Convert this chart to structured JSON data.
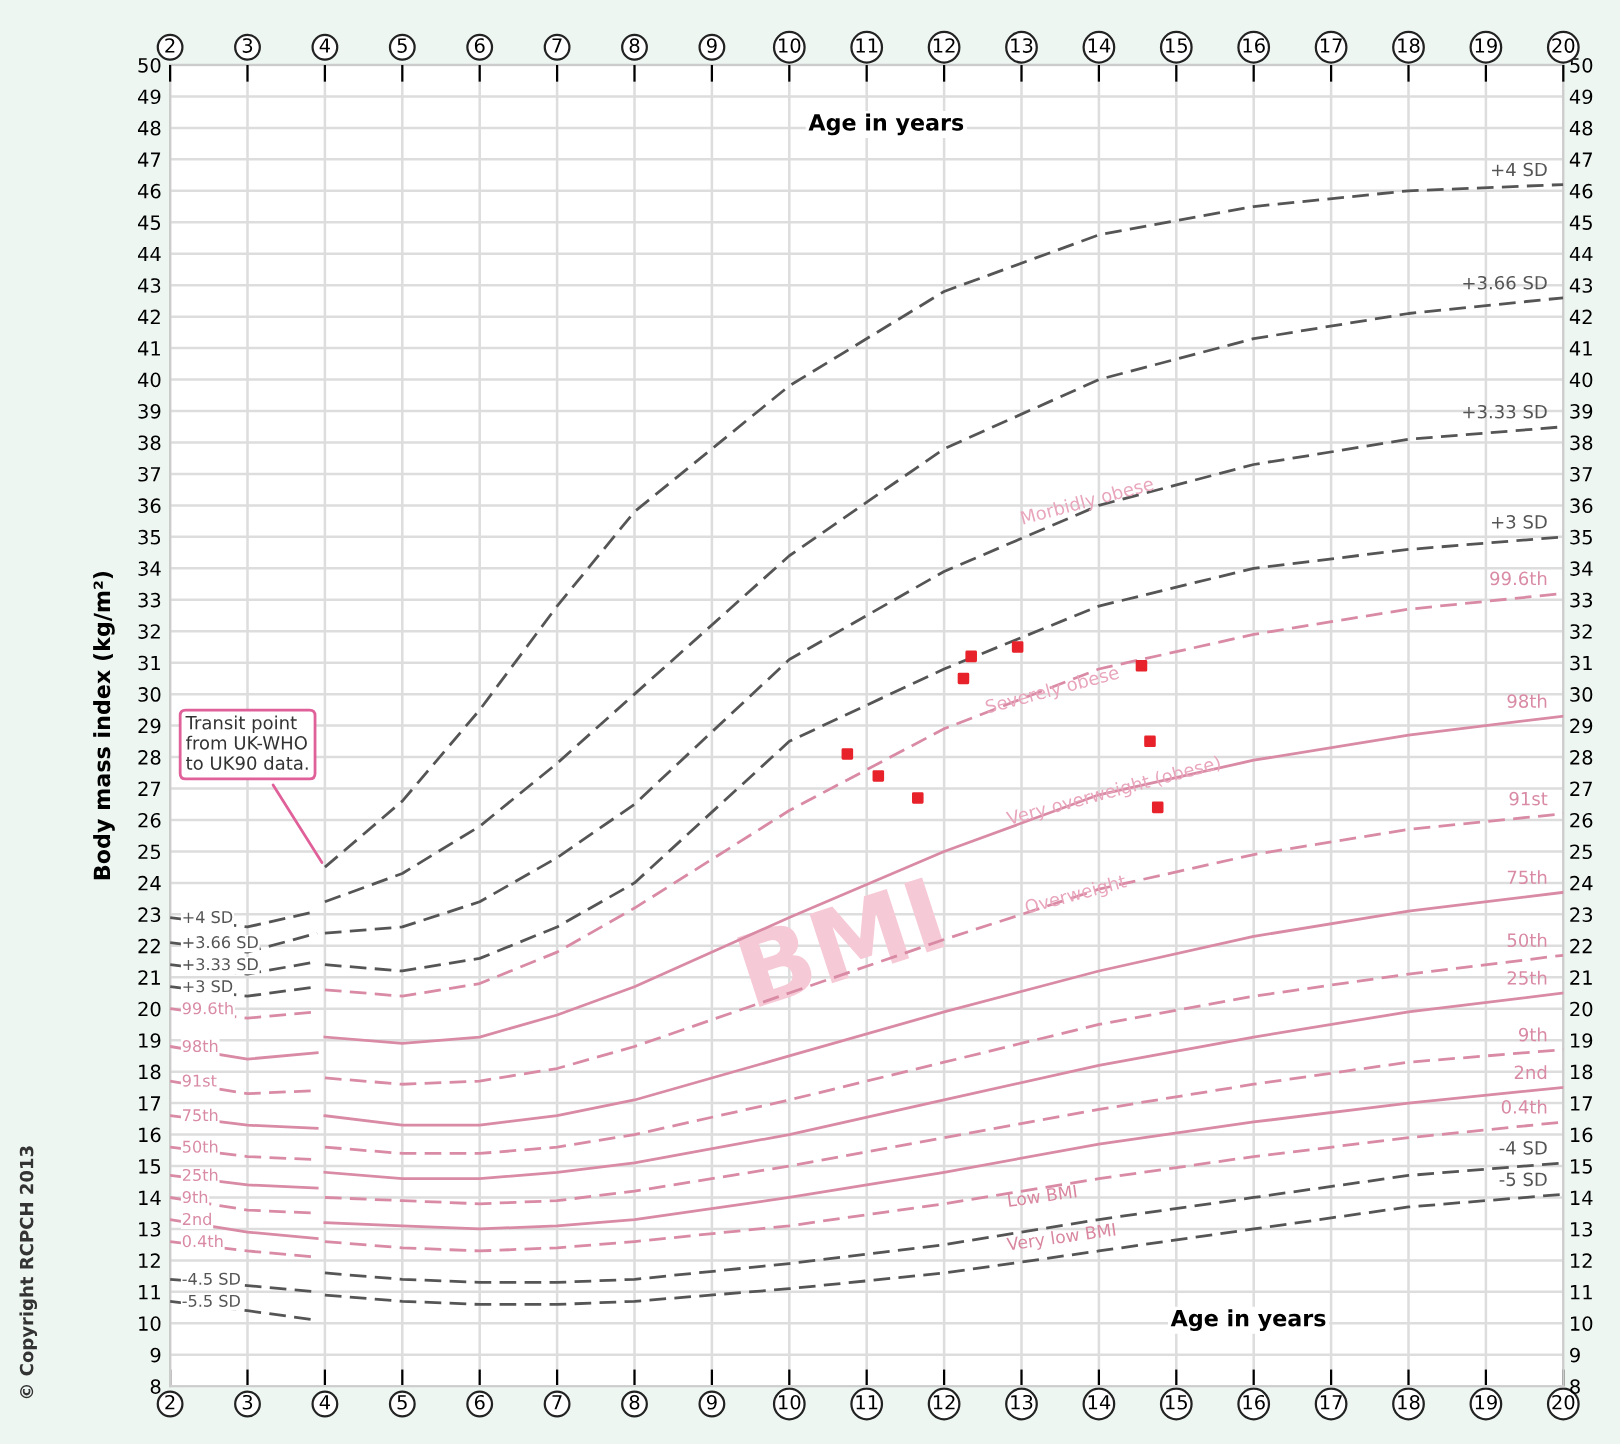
{
  "chart_data": {
    "type": "line",
    "xlabel": "Age in years",
    "x2label": "Age in years",
    "ylabel": "Body mass index (kg/m²)",
    "xlim": [
      2,
      20
    ],
    "xticks": [
      2,
      3,
      4,
      5,
      6,
      7,
      8,
      9,
      10,
      11,
      12,
      13,
      14,
      15,
      16,
      17,
      18,
      19,
      20
    ],
    "x2lim": [
      2,
      20
    ],
    "x2ticks": [
      2,
      3,
      4,
      5,
      6,
      7,
      8,
      9,
      10,
      11,
      12,
      13,
      14,
      15,
      16,
      17,
      18,
      19,
      20
    ],
    "ylim": [
      8,
      50
    ],
    "yticks": [
      8,
      9,
      10,
      11,
      12,
      13,
      14,
      15,
      16,
      17,
      18,
      19,
      20,
      21,
      22,
      23,
      24,
      25,
      26,
      27,
      28,
      29,
      30,
      31,
      32,
      33,
      34,
      35,
      36,
      37,
      38,
      39,
      40,
      41,
      42,
      43,
      44,
      45,
      46,
      47,
      48,
      49,
      50
    ],
    "y2lim": [
      8,
      50
    ],
    "y2ticks": [
      8,
      9,
      10,
      11,
      12,
      13,
      14,
      15,
      16,
      17,
      18,
      19,
      20,
      21,
      22,
      23,
      24,
      25,
      26,
      27,
      28,
      29,
      30,
      31,
      32,
      33,
      34,
      35,
      36,
      37,
      38,
      39,
      40,
      41,
      42,
      43,
      44,
      45,
      46,
      47,
      48,
      49,
      50
    ],
    "grid": true,
    "legend": false,
    "series": [
      {
        "name": "+4 SD",
        "color": "#555555",
        "line_style": "dashed",
        "x": [
          2,
          3,
          3.9
        ],
        "values": [
          22.9,
          22.6,
          23.1
        ]
      },
      {
        "name": "+3.66 SD",
        "color": "#555555",
        "line_style": "dashed",
        "x": [
          2,
          3,
          3.9
        ],
        "values": [
          22.1,
          21.8,
          22.4
        ]
      },
      {
        "name": "+3.33 SD",
        "color": "#555555",
        "line_style": "dashed",
        "x": [
          2,
          3,
          3.9
        ],
        "values": [
          21.4,
          21.1,
          21.5
        ]
      },
      {
        "name": "+3 SD",
        "color": "#555555",
        "line_style": "dashed",
        "x": [
          2,
          3,
          3.9
        ],
        "values": [
          20.7,
          20.4,
          20.7
        ]
      },
      {
        "name": "99.6th",
        "color": "#d98aa4",
        "line_style": "dashed",
        "x": [
          2,
          3,
          3.9
        ],
        "values": [
          20.0,
          19.7,
          19.9
        ]
      },
      {
        "name": "98th",
        "color": "#d98aa4",
        "line_style": "solid",
        "x": [
          2,
          3,
          3.9
        ],
        "values": [
          18.8,
          18.4,
          18.6
        ]
      },
      {
        "name": "91st",
        "color": "#d98aa4",
        "line_style": "dashed",
        "x": [
          2,
          3,
          3.9
        ],
        "values": [
          17.7,
          17.3,
          17.4
        ]
      },
      {
        "name": "75th",
        "color": "#d98aa4",
        "line_style": "solid",
        "x": [
          2,
          3,
          3.9
        ],
        "values": [
          16.6,
          16.3,
          16.2
        ]
      },
      {
        "name": "50th",
        "color": "#d98aa4",
        "line_style": "dashed",
        "x": [
          2,
          3,
          3.9
        ],
        "values": [
          15.6,
          15.3,
          15.2
        ]
      },
      {
        "name": "25th",
        "color": "#d98aa4",
        "line_style": "solid",
        "x": [
          2,
          3,
          3.9
        ],
        "values": [
          14.7,
          14.4,
          14.3
        ]
      },
      {
        "name": "9th",
        "color": "#d98aa4",
        "line_style": "dashed",
        "x": [
          2,
          3,
          3.9
        ],
        "values": [
          14.0,
          13.6,
          13.5
        ]
      },
      {
        "name": "2nd",
        "color": "#d98aa4",
        "line_style": "solid",
        "x": [
          2,
          3,
          3.9
        ],
        "values": [
          13.3,
          12.9,
          12.7
        ]
      },
      {
        "name": "0.4th",
        "color": "#d98aa4",
        "line_style": "dashed",
        "x": [
          2,
          3,
          3.9
        ],
        "values": [
          12.6,
          12.3,
          12.1
        ]
      },
      {
        "name": "-4.5 SD",
        "color": "#555555",
        "line_style": "dashed",
        "x": [
          2,
          3,
          3.9
        ],
        "values": [
          11.4,
          11.2,
          11.0
        ]
      },
      {
        "name": "-5.5 SD",
        "color": "#555555",
        "line_style": "dashed",
        "x": [
          2,
          3,
          3.9
        ],
        "values": [
          10.7,
          10.4,
          10.1
        ]
      },
      {
        "name": "+4 SD",
        "color": "#555555",
        "line_style": "dashed",
        "x": [
          4,
          5,
          6,
          7,
          8,
          10,
          12,
          14,
          16,
          18,
          20
        ],
        "values": [
          24.5,
          26.6,
          29.5,
          32.8,
          35.8,
          39.8,
          42.8,
          44.6,
          45.5,
          46.0,
          46.2
        ]
      },
      {
        "name": "+3.66 SD",
        "color": "#555555",
        "line_style": "dashed",
        "x": [
          4,
          5,
          6,
          7,
          8,
          10,
          12,
          14,
          16,
          18,
          20
        ],
        "values": [
          23.4,
          24.3,
          25.8,
          27.8,
          30.0,
          34.4,
          37.8,
          40.0,
          41.3,
          42.1,
          42.6
        ]
      },
      {
        "name": "+3.33 SD",
        "color": "#555555",
        "line_style": "dashed",
        "x": [
          4,
          5,
          6,
          7,
          8,
          10,
          12,
          14,
          16,
          18,
          20
        ],
        "values": [
          22.4,
          22.6,
          23.4,
          24.8,
          26.5,
          31.1,
          33.9,
          36.0,
          37.3,
          38.1,
          38.5
        ]
      },
      {
        "name": "+3 SD",
        "color": "#555555",
        "line_style": "dashed",
        "x": [
          4,
          5,
          6,
          7,
          8,
          10,
          12,
          14,
          16,
          18,
          20
        ],
        "values": [
          21.4,
          21.2,
          21.6,
          22.6,
          24.0,
          28.5,
          30.8,
          32.8,
          34.0,
          34.6,
          35.0
        ]
      },
      {
        "name": "99.6th",
        "color": "#d98aa4",
        "line_style": "dashed",
        "x": [
          4,
          5,
          6,
          7,
          8,
          10,
          12,
          14,
          16,
          18,
          20
        ],
        "values": [
          20.6,
          20.4,
          20.8,
          21.8,
          23.2,
          26.3,
          28.9,
          30.8,
          31.9,
          32.7,
          33.2
        ]
      },
      {
        "name": "98th",
        "color": "#d98aa4",
        "line_style": "solid",
        "x": [
          4,
          5,
          6,
          7,
          8,
          10,
          12,
          14,
          16,
          18,
          20
        ],
        "values": [
          19.1,
          18.9,
          19.1,
          19.8,
          20.7,
          22.9,
          25.0,
          26.8,
          27.9,
          28.7,
          29.3
        ]
      },
      {
        "name": "91st",
        "color": "#d98aa4",
        "line_style": "dashed",
        "x": [
          4,
          5,
          6,
          7,
          8,
          10,
          12,
          14,
          16,
          18,
          20
        ],
        "values": [
          17.8,
          17.6,
          17.7,
          18.1,
          18.8,
          20.5,
          22.2,
          23.8,
          24.9,
          25.7,
          26.2
        ]
      },
      {
        "name": "75th",
        "color": "#d98aa4",
        "line_style": "solid",
        "x": [
          4,
          5,
          6,
          7,
          8,
          10,
          12,
          14,
          16,
          18,
          20
        ],
        "values": [
          16.6,
          16.3,
          16.3,
          16.6,
          17.1,
          18.5,
          19.9,
          21.2,
          22.3,
          23.1,
          23.7
        ]
      },
      {
        "name": "50th",
        "color": "#d98aa4",
        "line_style": "dashed",
        "x": [
          4,
          5,
          6,
          7,
          8,
          10,
          12,
          14,
          16,
          18,
          20
        ],
        "values": [
          15.6,
          15.4,
          15.4,
          15.6,
          16.0,
          17.1,
          18.3,
          19.5,
          20.4,
          21.1,
          21.7
        ]
      },
      {
        "name": "25th",
        "color": "#d98aa4",
        "line_style": "solid",
        "x": [
          4,
          5,
          6,
          7,
          8,
          10,
          12,
          14,
          16,
          18,
          20
        ],
        "values": [
          14.8,
          14.6,
          14.6,
          14.8,
          15.1,
          16.0,
          17.1,
          18.2,
          19.1,
          19.9,
          20.5
        ]
      },
      {
        "name": "9th",
        "color": "#d98aa4",
        "line_style": "dashed",
        "x": [
          4,
          5,
          6,
          7,
          8,
          10,
          12,
          14,
          16,
          18,
          20
        ],
        "values": [
          14.0,
          13.9,
          13.8,
          13.9,
          14.2,
          15.0,
          15.9,
          16.8,
          17.6,
          18.3,
          18.7
        ]
      },
      {
        "name": "2nd",
        "color": "#d98aa4",
        "line_style": "solid",
        "x": [
          4,
          5,
          6,
          7,
          8,
          10,
          12,
          14,
          16,
          18,
          20
        ],
        "values": [
          13.2,
          13.1,
          13.0,
          13.1,
          13.3,
          14.0,
          14.8,
          15.7,
          16.4,
          17.0,
          17.5
        ]
      },
      {
        "name": "0.4th",
        "color": "#d98aa4",
        "line_style": "dashed",
        "x": [
          4,
          5,
          6,
          7,
          8,
          10,
          12,
          14,
          16,
          18,
          20
        ],
        "values": [
          12.6,
          12.4,
          12.3,
          12.4,
          12.6,
          13.1,
          13.8,
          14.6,
          15.3,
          15.9,
          16.4
        ]
      },
      {
        "name": "-4 SD",
        "color": "#555555",
        "line_style": "dashed",
        "x": [
          4,
          5,
          6,
          7,
          8,
          10,
          12,
          14,
          16,
          18,
          20
        ],
        "values": [
          11.6,
          11.4,
          11.3,
          11.3,
          11.4,
          11.9,
          12.5,
          13.3,
          14.0,
          14.7,
          15.1
        ]
      },
      {
        "name": "-5 SD",
        "color": "#555555",
        "line_style": "dashed",
        "x": [
          4,
          5,
          6,
          7,
          8,
          10,
          12,
          14,
          16,
          18,
          20
        ],
        "values": [
          10.9,
          10.7,
          10.6,
          10.6,
          10.7,
          11.1,
          11.6,
          12.3,
          13.0,
          13.7,
          14.1
        ]
      },
      {
        "type": "scatter",
        "color": "#e8222a",
        "marker": "square",
        "x": [
          10.75,
          11.15,
          11.66,
          12.25,
          12.35,
          12.95,
          14.55,
          14.66,
          14.76
        ],
        "values": [
          28.1,
          27.4,
          26.7,
          30.5,
          31.2,
          31.5,
          30.9,
          28.5,
          26.4
        ]
      }
    ],
    "annotations": [
      {
        "text": "Transit point\nfrom UK-WHO\nto UK90 data.",
        "x": 4,
        "y": 24.5
      },
      {
        "text": "Morbidly obese",
        "x": 13.85,
        "y": 36.1
      },
      {
        "text": "Severely obese",
        "x": 13.4,
        "y": 30.1
      },
      {
        "text": "Very overweight (obese)",
        "x": 14.2,
        "y": 26.9
      },
      {
        "text": "Overweight",
        "x": 13.7,
        "y": 23.6
      },
      "BMI",
      "© Copyright RCPCH 2013",
      "Low BMI",
      "Very low BMI"
    ]
  }
}
